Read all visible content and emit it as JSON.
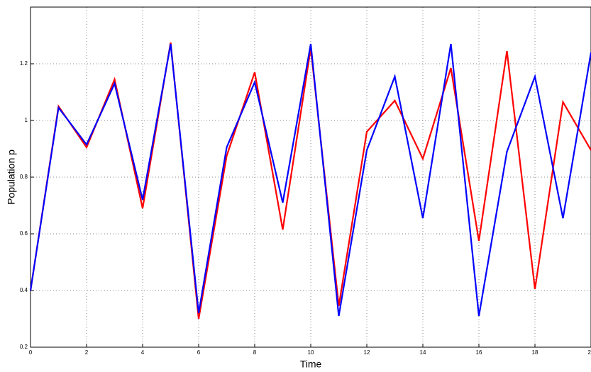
{
  "chart_data": {
    "type": "line",
    "xlabel": "Time",
    "ylabel": "Population p",
    "x": [
      0,
      1,
      2,
      3,
      4,
      5,
      6,
      7,
      8,
      9,
      10,
      11,
      12,
      13,
      14,
      15,
      16,
      17,
      18,
      19,
      20
    ],
    "series": [
      {
        "color": "#ff0000",
        "values": [
          0.4,
          1.05,
          0.905,
          1.145,
          0.69,
          1.275,
          0.3,
          0.875,
          1.17,
          0.615,
          1.255,
          0.345,
          0.96,
          1.07,
          0.865,
          1.185,
          0.575,
          1.245,
          0.405,
          1.065,
          0.895
        ]
      },
      {
        "color": "#0000ff",
        "values": [
          0.4,
          1.045,
          0.915,
          1.13,
          0.72,
          1.27,
          0.32,
          0.905,
          1.135,
          0.71,
          1.27,
          0.31,
          0.895,
          1.155,
          0.655,
          1.27,
          0.31,
          0.89,
          1.155,
          0.655,
          1.24
        ]
      }
    ],
    "xlim": [
      0,
      20
    ],
    "xticks": [
      0,
      2,
      4,
      6,
      8,
      10,
      12,
      14,
      16,
      18,
      20
    ],
    "ylim": [
      0.2,
      1.4
    ],
    "yticks": [
      0.2,
      0.4,
      0.6,
      0.8,
      1,
      1.2
    ],
    "grid": true
  }
}
